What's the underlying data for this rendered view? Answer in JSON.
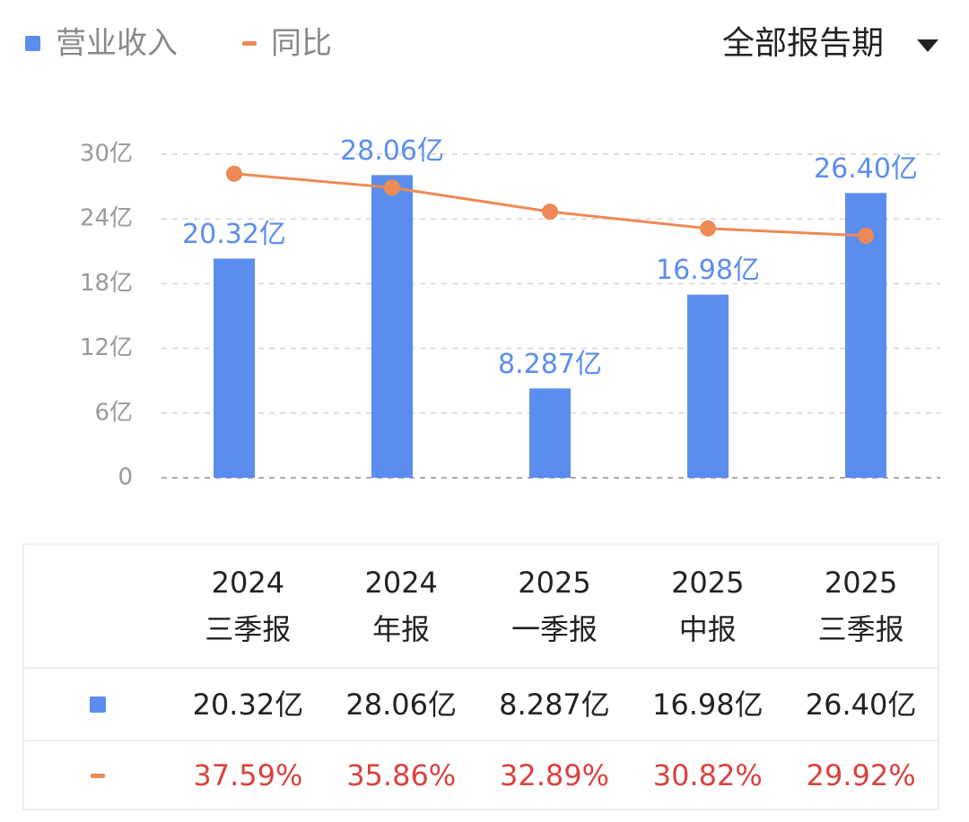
{
  "controls": {
    "period_filter": "全部报告期"
  },
  "chart_data": {
    "type": "bar",
    "categories": [
      "2024\n三季报",
      "2024\n年报",
      "2025\n一季报",
      "2025\n中报",
      "2025\n三季报"
    ],
    "series": [
      {
        "name": "营业收入",
        "type": "bar",
        "color": "#5b8def",
        "values": [
          20.32,
          28.06,
          8.287,
          16.98,
          26.4
        ],
        "value_labels": [
          "20.32亿",
          "28.06亿",
          "8.287亿",
          "16.98亿",
          "26.40亿"
        ]
      },
      {
        "name": "同比",
        "type": "line",
        "axis": "y2",
        "color": "#ee8a55",
        "values": [
          37.59,
          35.86,
          32.89,
          30.82,
          29.92
        ],
        "value_labels": [
          "37.59%",
          "35.86%",
          "32.89%",
          "30.82%",
          "29.92%"
        ]
      }
    ],
    "ylim": [
      0,
      30
    ],
    "yticks": [
      0,
      {
        "value": 6,
        "label": "6亿"
      },
      {
        "value": 12,
        "label": "12亿"
      },
      {
        "value": 18,
        "label": "18亿"
      },
      {
        "value": 24,
        "label": "24亿"
      },
      {
        "value": 30,
        "label": "30亿"
      }
    ],
    "y2lim": [
      0,
      40
    ],
    "grid": true,
    "legend": "top-left"
  }
}
